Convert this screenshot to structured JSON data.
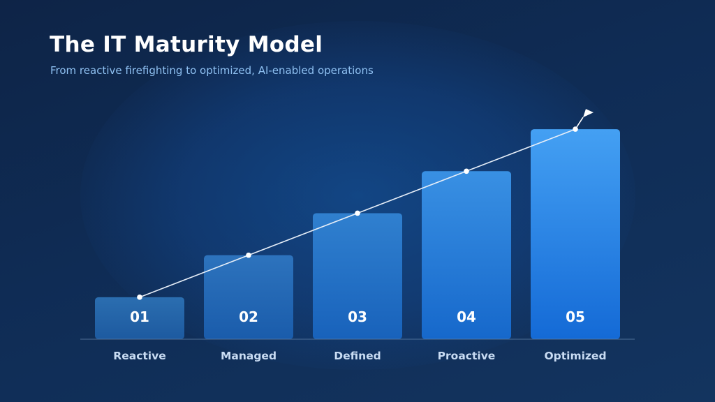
{
  "title": "The IT Maturity Model",
  "subtitle": "From reactive firefighting to optimized, AI-enabled operations",
  "colors": {
    "background": "#0f2c55",
    "bar_low": "#2a6aae",
    "bar_high": "#3c9cf3",
    "line": "#e6eef8",
    "category_text": "#c9dcf3",
    "subtitle_text": "#8fc1f2"
  },
  "chart_data": {
    "type": "bar",
    "title": "The IT Maturity Model",
    "subtitle": "From reactive firefighting to optimized, AI-enabled operations",
    "categories": [
      "Reactive",
      "Managed",
      "Defined",
      "Proactive",
      "Optimized"
    ],
    "bar_labels": [
      "01",
      "02",
      "03",
      "04",
      "05"
    ],
    "values": [
      1,
      2,
      3,
      4,
      5
    ],
    "ylim": [
      0,
      5.5
    ],
    "trend_line": true,
    "trend_arrow": "flag",
    "grid": false,
    "legend": "none"
  }
}
